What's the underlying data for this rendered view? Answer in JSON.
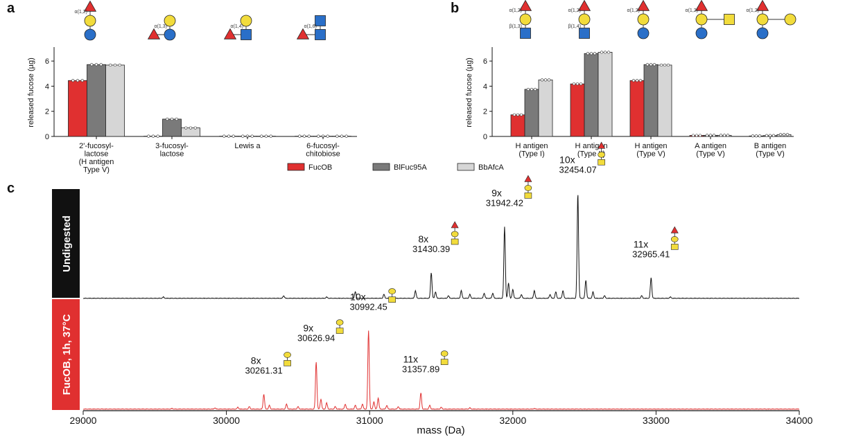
{
  "colors": {
    "FucOB": "#e03030",
    "BlFuc95A": "#7a7a7a",
    "BbAfcA": "#d6d6d6",
    "undigested_trace": "#111111",
    "digested_trace": "#e03030",
    "undigested_label_bg": "#111111",
    "digested_label_bg": "#e03030",
    "fucose": "#e03030",
    "galactose": "#f2dc3c",
    "glucose": "#2a6fc8",
    "glcnac": "#2a6fc8",
    "galnac": "#f2dc3c"
  },
  "legend": [
    {
      "key": "FucOB",
      "label": "FucOB"
    },
    {
      "key": "BlFuc95A",
      "label": "BlFuc95A"
    },
    {
      "key": "BbAfcA",
      "label": "BbAfcA"
    }
  ],
  "panel_a": {
    "letter": "a",
    "ylabel": "released fucose (µg)",
    "ylim": [
      0,
      7
    ],
    "yticks": [
      "0",
      "2",
      "4",
      "6"
    ],
    "linkage_labels": [
      "α(1,2)",
      "α(1,3)",
      "α(1,4)",
      "α(1,6)"
    ]
  },
  "panel_b": {
    "letter": "b",
    "ylabel": "released fucose (µg)",
    "ylim": [
      0,
      7
    ],
    "yticks": [
      "0",
      "2",
      "4",
      "6"
    ],
    "linkage_labels": [
      "α(1,2)",
      "β(1,3)",
      "α(1,2)",
      "β(1,4)",
      "α(1,2)",
      "α(1,2)",
      "α(1,2)"
    ]
  },
  "panel_c": {
    "letter": "c",
    "track_labels": [
      "Undigested",
      "FucOB, 1h, 37°C"
    ],
    "xlabel": "mass (Da)",
    "xticks": [
      "29000",
      "30000",
      "31000",
      "32000",
      "33000",
      "34000"
    ]
  },
  "chart_data": [
    {
      "type": "bar",
      "panel": "a",
      "categories": [
        [
          "2'-fucosyl-",
          "lactose",
          "(H antigen",
          "Type V)"
        ],
        [
          "3-fucosyl-",
          "lactose"
        ],
        [
          "Lewis a"
        ],
        [
          "6-fucosyl-",
          "chitobiose"
        ]
      ],
      "series": [
        {
          "name": "FucOB",
          "values": [
            4.45,
            0.02,
            0.02,
            0.02
          ]
        },
        {
          "name": "BlFuc95A",
          "values": [
            5.72,
            1.38,
            0.02,
            0.02
          ]
        },
        {
          "name": "BbAfcA",
          "values": [
            5.68,
            0.68,
            0.02,
            0.02
          ]
        }
      ],
      "ylabel": "released fucose (µg)",
      "ylim": [
        0,
        7
      ]
    },
    {
      "type": "bar",
      "panel": "b",
      "categories": [
        [
          "H antigen",
          "(Type I)"
        ],
        [
          "H antigen",
          "(Type II)"
        ],
        [
          "H antigen",
          "(Type V)"
        ],
        [
          "A antigen",
          "(Type V)"
        ],
        [
          "B antigen",
          "(Type V)"
        ]
      ],
      "series": [
        {
          "name": "FucOB",
          "values": [
            1.72,
            4.18,
            4.45,
            0.08,
            0.04
          ]
        },
        {
          "name": "BlFuc95A",
          "values": [
            3.75,
            6.6,
            5.72,
            0.09,
            0.07
          ]
        },
        {
          "name": "BbAfcA",
          "values": [
            4.5,
            6.7,
            5.68,
            0.09,
            0.15
          ]
        }
      ],
      "ylabel": "released fucose (µg)",
      "ylim": [
        0,
        7
      ]
    },
    {
      "type": "line",
      "panel": "c",
      "xlabel": "mass (Da)",
      "xlim": [
        29000,
        34000
      ],
      "series": [
        {
          "name": "Undigested",
          "peaks": [
            {
              "n": "8x",
              "mass": "31430.39",
              "x": 31430.39,
              "rel": 0.2
            },
            {
              "n": "9x",
              "mass": "31942.42",
              "x": 31942.42,
              "rel": 0.56
            },
            {
              "n": "10x",
              "mass": "32454.07",
              "x": 32454.07,
              "rel": 0.82
            },
            {
              "n": "11x",
              "mass": "32965.41",
              "x": 32965.41,
              "rel": 0.16
            }
          ],
          "minor_peaks": [
            {
              "x": 29560,
              "rel": 0.01
            },
            {
              "x": 30400,
              "rel": 0.02
            },
            {
              "x": 30700,
              "rel": 0.01
            },
            {
              "x": 30900,
              "rel": 0.05
            },
            {
              "x": 31100,
              "rel": 0.03
            },
            {
              "x": 31320,
              "rel": 0.06
            },
            {
              "x": 31460,
              "rel": 0.05
            },
            {
              "x": 31550,
              "rel": 0.02
            },
            {
              "x": 31640,
              "rel": 0.06
            },
            {
              "x": 31700,
              "rel": 0.03
            },
            {
              "x": 31800,
              "rel": 0.04
            },
            {
              "x": 31860,
              "rel": 0.04
            },
            {
              "x": 31970,
              "rel": 0.12
            },
            {
              "x": 32000,
              "rel": 0.07
            },
            {
              "x": 32060,
              "rel": 0.03
            },
            {
              "x": 32150,
              "rel": 0.06
            },
            {
              "x": 32260,
              "rel": 0.03
            },
            {
              "x": 32300,
              "rel": 0.05
            },
            {
              "x": 32350,
              "rel": 0.06
            },
            {
              "x": 32510,
              "rel": 0.14
            },
            {
              "x": 32560,
              "rel": 0.05
            },
            {
              "x": 32640,
              "rel": 0.02
            },
            {
              "x": 32900,
              "rel": 0.02
            },
            {
              "x": 33100,
              "rel": 0.01
            }
          ]
        },
        {
          "name": "FucOB, 1h, 37°C",
          "peaks": [
            {
              "n": "8x",
              "mass": "30261.31",
              "x": 30261.31,
              "rel": 0.12
            },
            {
              "n": "9x",
              "mass": "30626.94",
              "x": 30626.94,
              "rel": 0.38
            },
            {
              "n": "10x",
              "mass": "30992.45",
              "x": 30992.45,
              "rel": 0.63
            },
            {
              "n": "11x",
              "mass": "31357.89",
              "x": 31357.89,
              "rel": 0.13
            }
          ],
          "minor_peaks": [
            {
              "x": 29620,
              "rel": 0.005
            },
            {
              "x": 29920,
              "rel": 0.01
            },
            {
              "x": 30080,
              "rel": 0.015
            },
            {
              "x": 30160,
              "rel": 0.02
            },
            {
              "x": 30300,
              "rel": 0.03
            },
            {
              "x": 30420,
              "rel": 0.04
            },
            {
              "x": 30500,
              "rel": 0.02
            },
            {
              "x": 30660,
              "rel": 0.08
            },
            {
              "x": 30700,
              "rel": 0.05
            },
            {
              "x": 30760,
              "rel": 0.02
            },
            {
              "x": 30830,
              "rel": 0.04
            },
            {
              "x": 30900,
              "rel": 0.03
            },
            {
              "x": 30950,
              "rel": 0.04
            },
            {
              "x": 31030,
              "rel": 0.06
            },
            {
              "x": 31060,
              "rel": 0.09
            },
            {
              "x": 31120,
              "rel": 0.03
            },
            {
              "x": 31200,
              "rel": 0.02
            },
            {
              "x": 31420,
              "rel": 0.03
            },
            {
              "x": 31500,
              "rel": 0.015
            },
            {
              "x": 31700,
              "rel": 0.01
            },
            {
              "x": 32150,
              "rel": 0.005
            }
          ]
        }
      ]
    }
  ]
}
